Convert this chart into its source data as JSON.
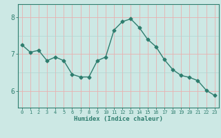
{
  "x": [
    0,
    1,
    2,
    3,
    4,
    5,
    6,
    7,
    8,
    9,
    10,
    11,
    12,
    13,
    14,
    15,
    16,
    17,
    18,
    19,
    20,
    21,
    22,
    23
  ],
  "y": [
    7.25,
    7.05,
    7.1,
    6.82,
    6.92,
    6.82,
    6.45,
    6.38,
    6.38,
    6.82,
    6.92,
    7.65,
    7.88,
    7.95,
    7.72,
    7.4,
    7.2,
    6.85,
    6.58,
    6.42,
    6.37,
    6.28,
    6.02,
    5.88
  ],
  "line_color": "#2e7d6e",
  "marker": "D",
  "markersize": 2.5,
  "bg_color": "#cce8e4",
  "grid_color": "#b0d4d0",
  "grid_color_red": "#e8b0b0",
  "axis_color": "#2e7d6e",
  "tick_color": "#2e7d6e",
  "xlabel": "Humidex (Indice chaleur)",
  "yticks": [
    6,
    7,
    8
  ],
  "ylim": [
    5.55,
    8.35
  ],
  "xlim": [
    -0.5,
    23.5
  ]
}
